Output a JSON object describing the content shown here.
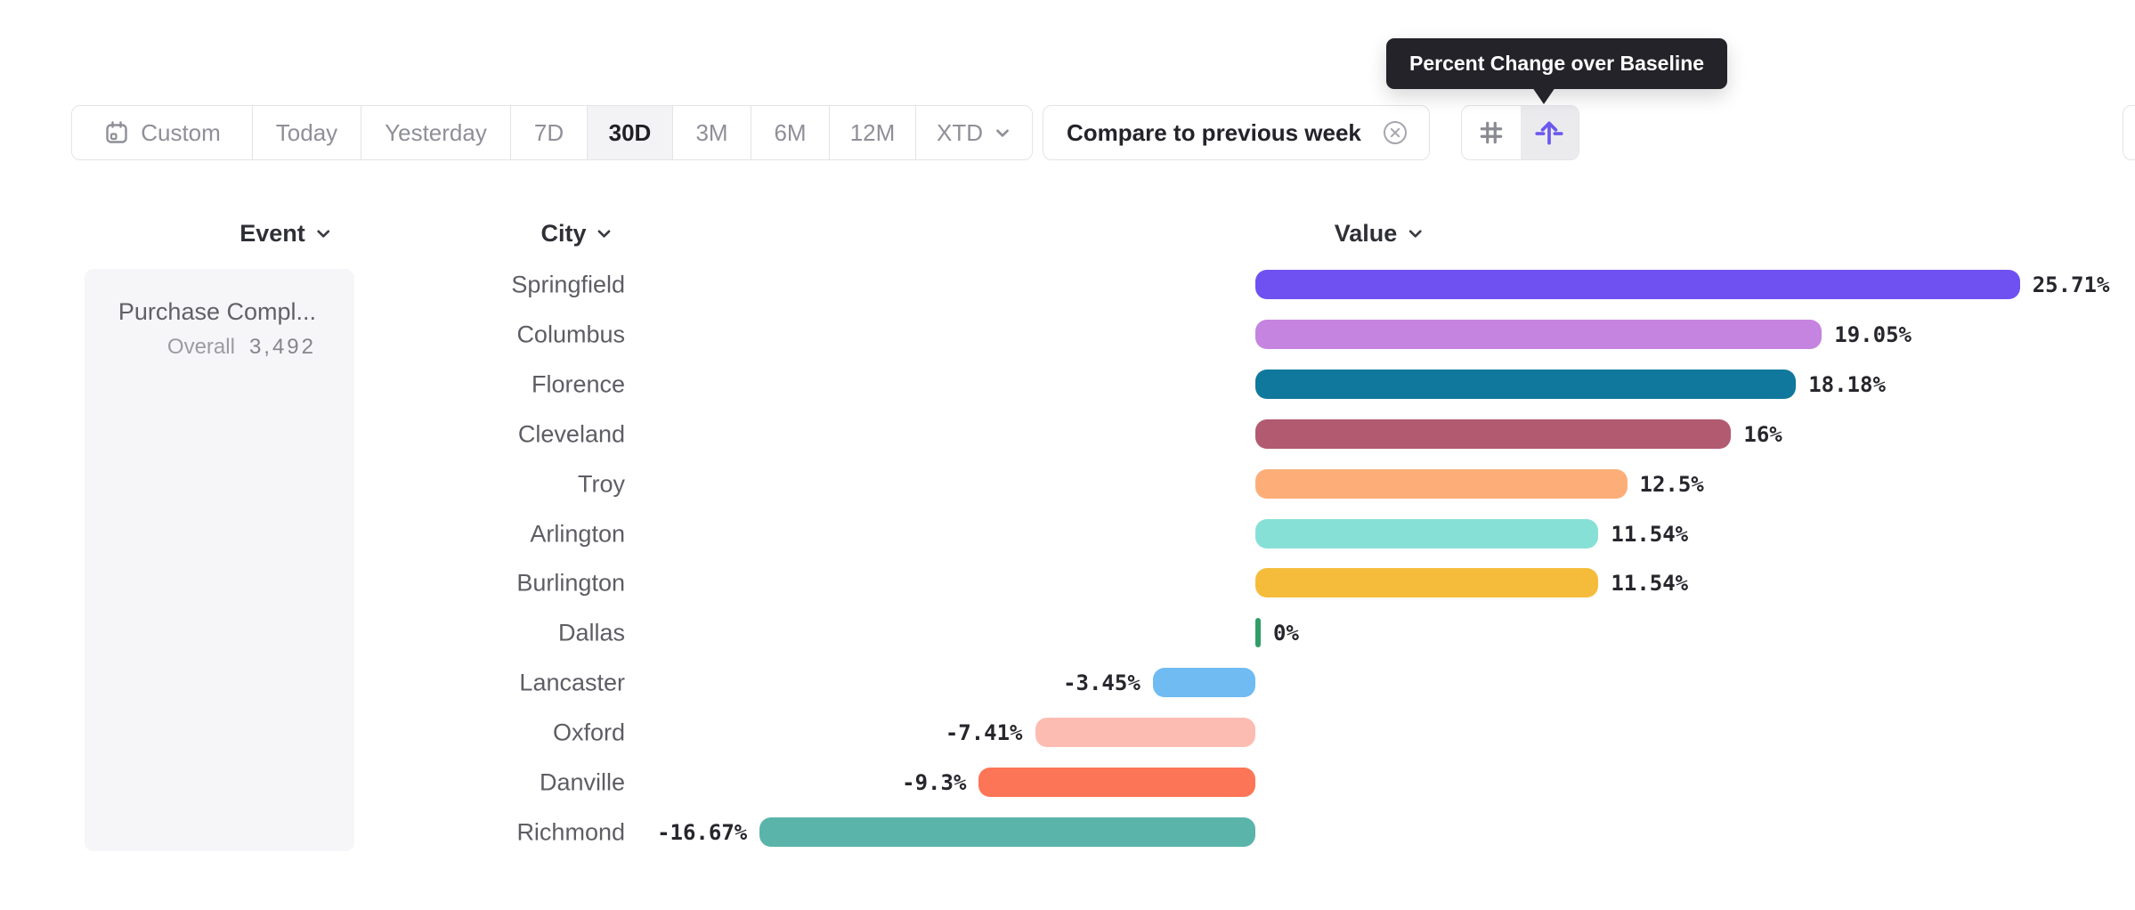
{
  "tooltip": {
    "text": "Percent Change over Baseline"
  },
  "toolbar": {
    "date_ranges": [
      {
        "label": "Custom",
        "icon": "calendar-icon",
        "selected": false
      },
      {
        "label": "Today",
        "selected": false
      },
      {
        "label": "Yesterday",
        "selected": false
      },
      {
        "label": "7D",
        "selected": false
      },
      {
        "label": "30D",
        "selected": true
      },
      {
        "label": "3M",
        "selected": false
      },
      {
        "label": "6M",
        "selected": false
      },
      {
        "label": "12M",
        "selected": false
      },
      {
        "label": "XTD",
        "selected": false,
        "caret": "chevron-down-icon"
      }
    ],
    "compare_chip": {
      "label": "Compare to previous week",
      "close_icon": "close-circle-icon"
    },
    "view_toggle": [
      {
        "icon": "hash-grid-icon",
        "selected": false
      },
      {
        "icon": "arrow-up-over-baseline-icon",
        "selected": true,
        "color": "#6a58ee"
      }
    ]
  },
  "columns": {
    "event": "Event",
    "city": "City",
    "value": "Value"
  },
  "event_panel": {
    "name": "Purchase Compl...",
    "overall_label": "Overall",
    "overall_value": "3,492"
  },
  "chart_data": {
    "type": "bar",
    "orientation": "horizontal",
    "title": "",
    "xlabel": "Value",
    "ylabel": "City",
    "baseline": 0,
    "xlim": [
      -16.67,
      25.71
    ],
    "grid": false,
    "legend": "none",
    "categories": [
      "Springfield",
      "Columbus",
      "Florence",
      "Cleveland",
      "Troy",
      "Arlington",
      "Burlington",
      "Dallas",
      "Lancaster",
      "Oxford",
      "Danville",
      "Richmond"
    ],
    "values": [
      25.71,
      19.05,
      18.18,
      16,
      12.5,
      11.54,
      11.54,
      0,
      -3.45,
      -7.41,
      -9.3,
      -16.67
    ],
    "labels": [
      "25.71%",
      "19.05%",
      "18.18%",
      "16%",
      "12.5%",
      "11.54%",
      "11.54%",
      "0%",
      "-3.45%",
      "-7.41%",
      "-9.3%",
      "-16.67%"
    ],
    "colors": [
      "#6e51f0",
      "#c584e0",
      "#10789c",
      "#b25a70",
      "#fdae78",
      "#87e0d6",
      "#f5bc3b",
      "#2f9e68",
      "#6fbbf2",
      "#fdbcb2",
      "#fc7556",
      "#5ab4aa"
    ]
  }
}
